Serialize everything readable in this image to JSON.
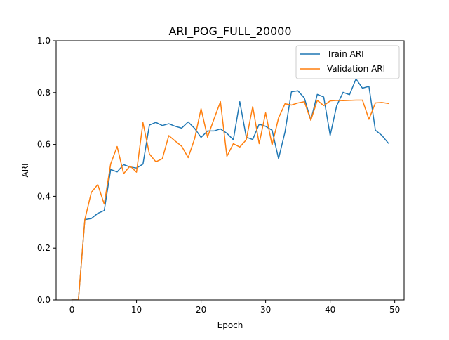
{
  "chart_data": {
    "type": "line",
    "title": "ARI_POG_FULL_20000",
    "xlabel": "Epoch",
    "ylabel": "ARI",
    "xlim": [
      -2.45,
      51.45
    ],
    "ylim": [
      0,
      1.0
    ],
    "xticks": [
      0,
      10,
      20,
      30,
      40,
      50
    ],
    "yticks": [
      0.0,
      0.2,
      0.4,
      0.6,
      0.8,
      1.0
    ],
    "legend_position": "top-right",
    "grid": false,
    "x": [
      0,
      1,
      2,
      3,
      4,
      5,
      6,
      7,
      8,
      9,
      10,
      11,
      12,
      13,
      14,
      15,
      16,
      17,
      18,
      19,
      20,
      21,
      22,
      23,
      24,
      25,
      26,
      27,
      28,
      29,
      30,
      31,
      32,
      33,
      34,
      35,
      36,
      37,
      38,
      39,
      40,
      41,
      42,
      43,
      44,
      45,
      46,
      47,
      48,
      49
    ],
    "series": [
      {
        "name": "Train ARI",
        "color": "#1f77b4",
        "values": [
          0.0,
          0.0,
          0.31,
          0.314,
          0.334,
          0.345,
          0.503,
          0.494,
          0.522,
          0.513,
          0.509,
          0.524,
          0.675,
          0.685,
          0.673,
          0.68,
          0.67,
          0.663,
          0.687,
          0.662,
          0.627,
          0.652,
          0.652,
          0.66,
          0.643,
          0.618,
          0.765,
          0.628,
          0.619,
          0.678,
          0.67,
          0.655,
          0.545,
          0.648,
          0.803,
          0.807,
          0.779,
          0.694,
          0.793,
          0.783,
          0.635,
          0.749,
          0.801,
          0.792,
          0.853,
          0.817,
          0.824,
          0.655,
          0.635,
          0.605
        ]
      },
      {
        "name": "Validation ARI",
        "color": "#ff7f0e",
        "values": [
          0.0,
          0.0,
          0.31,
          0.415,
          0.445,
          0.37,
          0.525,
          0.592,
          0.487,
          0.517,
          0.493,
          0.684,
          0.563,
          0.533,
          0.545,
          0.634,
          0.613,
          0.593,
          0.549,
          0.622,
          0.738,
          0.628,
          0.698,
          0.765,
          0.554,
          0.603,
          0.59,
          0.618,
          0.746,
          0.603,
          0.722,
          0.598,
          0.702,
          0.757,
          0.752,
          0.76,
          0.765,
          0.693,
          0.77,
          0.75,
          0.768,
          0.77,
          0.769,
          0.77,
          0.771,
          0.771,
          0.697,
          0.76,
          0.762,
          0.758
        ]
      }
    ]
  }
}
